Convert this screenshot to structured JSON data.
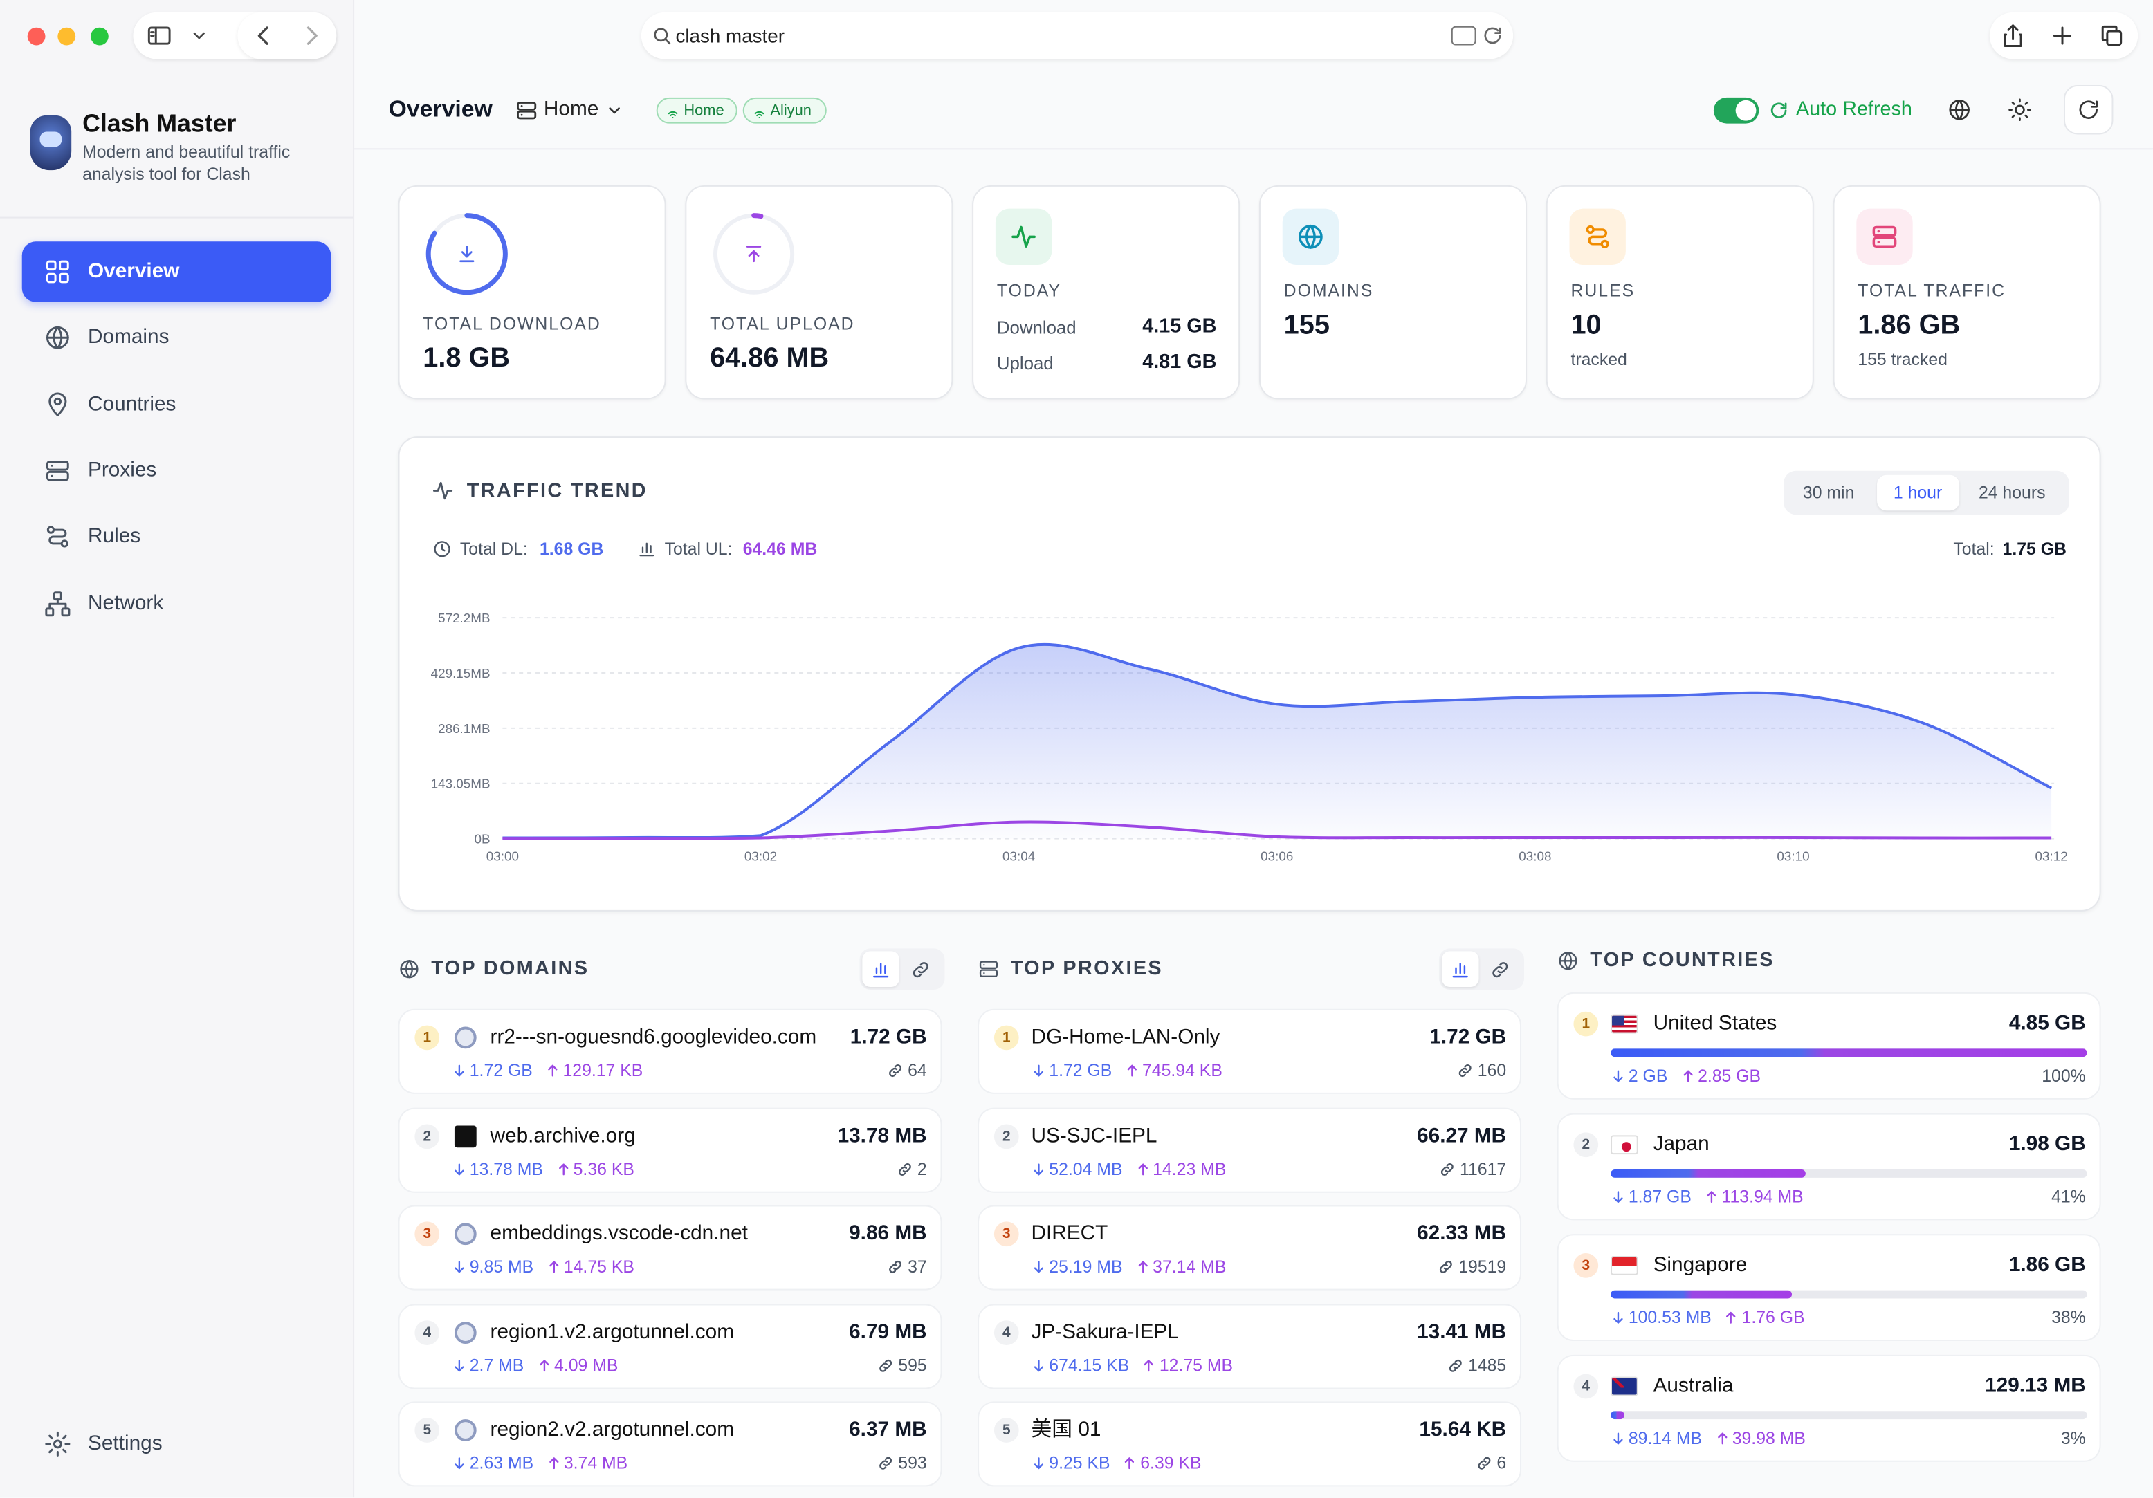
{
  "browser": {
    "search": "clash master"
  },
  "sidebar": {
    "app_name": "Clash Master",
    "tagline": "Modern and beautiful traffic analysis tool for Clash",
    "nav": [
      "Overview",
      "Domains",
      "Countries",
      "Proxies",
      "Rules",
      "Network"
    ],
    "settings": "Settings"
  },
  "header": {
    "title": "Overview",
    "backend": "Home",
    "tags": [
      "Home",
      "Aliyun"
    ],
    "auto_refresh": "Auto Refresh"
  },
  "stats": {
    "download": {
      "label": "TOTAL DOWNLOAD",
      "value": "1.8 GB"
    },
    "upload": {
      "label": "TOTAL UPLOAD",
      "value": "64.86 MB"
    },
    "today": {
      "label": "TODAY",
      "rows": [
        [
          "Download",
          "4.15 GB"
        ],
        [
          "Upload",
          "4.81 GB"
        ]
      ]
    },
    "domains": {
      "label": "DOMAINS",
      "value": "155"
    },
    "rules": {
      "label": "RULES",
      "value": "10",
      "sub": "tracked"
    },
    "traffic": {
      "label": "TOTAL TRAFFIC",
      "value": "1.86 GB",
      "sub": "155 tracked"
    }
  },
  "trend": {
    "title": "TRAFFIC TREND",
    "ranges": [
      "30 min",
      "1 hour",
      "24 hours"
    ],
    "total_dl_label": "Total DL:",
    "total_dl": "1.68 GB",
    "total_ul_label": "Total UL:",
    "total_ul": "64.46 MB",
    "total_label": "Total:",
    "total": "1.75 GB"
  },
  "chart_data": {
    "type": "line",
    "x": [
      "03:00",
      null,
      "03:02",
      null,
      "03:04",
      null,
      "03:06",
      null,
      "03:08",
      null,
      "03:10",
      null,
      "03:12"
    ],
    "series": [
      {
        "color": "#4f6bed",
        "fill": true,
        "values": [
          2,
          3,
          8,
          250,
          494,
          440,
          348,
          355,
          366,
          370,
          373,
          300,
          131
        ]
      },
      {
        "color": "#9b46e4",
        "values": [
          1,
          1,
          2,
          20,
          43,
          30,
          5,
          3,
          3,
          3,
          3,
          2,
          2
        ]
      }
    ],
    "ylim": [
      0,
      572.2
    ],
    "yticks": [
      {
        "value": 0,
        "label": "0B"
      },
      {
        "value": 143.05,
        "label": "143.05MB"
      },
      {
        "value": 286.1,
        "label": "286.1MB"
      },
      {
        "value": 429.15,
        "label": "429.15MB"
      },
      {
        "value": 572.2,
        "label": "572.2MB"
      }
    ],
    "grid": true
  },
  "top_domains": {
    "title": "TOP DOMAINS",
    "items": [
      {
        "rank": 1,
        "name": "rr2---sn-oguesnd6.googlevideo.com",
        "total": "1.72 GB",
        "down": "1.72 GB",
        "up": "129.17 KB",
        "connections": 64
      },
      {
        "rank": 2,
        "name": "web.archive.org",
        "total": "13.78 MB",
        "down": "13.78 MB",
        "up": "5.36 KB",
        "connections": 2
      },
      {
        "rank": 3,
        "name": "embeddings.vscode-cdn.net",
        "total": "9.86 MB",
        "down": "9.85 MB",
        "up": "14.75 KB",
        "connections": 37
      },
      {
        "rank": 4,
        "name": "region1.v2.argotunnel.com",
        "total": "6.79 MB",
        "down": "2.7 MB",
        "up": "4.09 MB",
        "connections": 595
      },
      {
        "rank": 5,
        "name": "region2.v2.argotunnel.com",
        "total": "6.37 MB",
        "down": "2.63 MB",
        "up": "3.74 MB",
        "connections": 593
      }
    ]
  },
  "top_proxies": {
    "title": "TOP PROXIES",
    "items": [
      {
        "rank": 1,
        "name": "DG-Home-LAN-Only",
        "total": "1.72 GB",
        "down": "1.72 GB",
        "up": "745.94 KB",
        "connections": 160
      },
      {
        "rank": 2,
        "name": "US-SJC-IEPL",
        "total": "66.27 MB",
        "down": "52.04 MB",
        "up": "14.23 MB",
        "connections": 11617
      },
      {
        "rank": 3,
        "name": "DIRECT",
        "total": "62.33 MB",
        "down": "25.19 MB",
        "up": "37.14 MB",
        "connections": 19519
      },
      {
        "rank": 4,
        "name": "JP-Sakura-IEPL",
        "total": "13.41 MB",
        "down": "674.15 KB",
        "up": "12.75 MB",
        "connections": 1485
      },
      {
        "rank": 5,
        "name": "美国 01",
        "total": "15.64 KB",
        "down": "9.25 KB",
        "up": "6.39 KB",
        "connections": 6
      }
    ]
  },
  "top_countries": {
    "title": "TOP COUNTRIES",
    "items": [
      {
        "rank": 1,
        "name": "United States",
        "total": "4.85 GB",
        "down": "2 GB",
        "up": "2.85 GB",
        "share": "100%"
      },
      {
        "rank": 2,
        "name": "Japan",
        "total": "1.98 GB",
        "down": "1.87 GB",
        "up": "113.94 MB",
        "share": "41%"
      },
      {
        "rank": 3,
        "name": "Singapore",
        "total": "1.86 GB",
        "down": "100.53 MB",
        "up": "1.76 GB",
        "share": "38%"
      },
      {
        "rank": 4,
        "name": "Australia",
        "total": "129.13 MB",
        "down": "89.14 MB",
        "up": "39.98 MB",
        "share": "3%"
      }
    ]
  }
}
